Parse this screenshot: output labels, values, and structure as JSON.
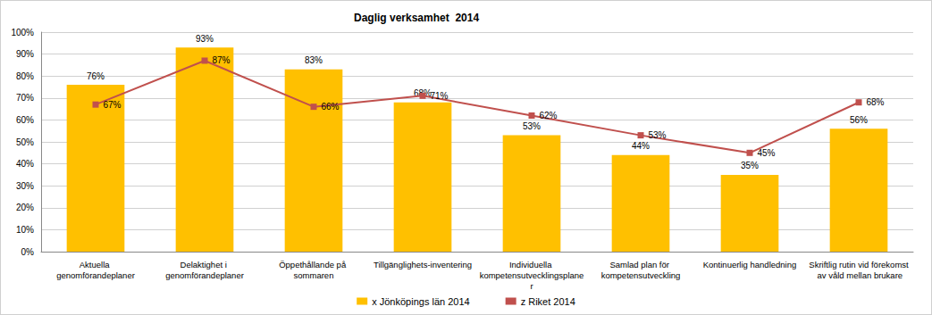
{
  "chart_data": {
    "type": "bar",
    "title": "Daglig verksamhet  2014",
    "categories": [
      "Aktuella genomförandeplaner",
      "Delaktighet i genomförandeplaner",
      "Öppethållande på sommaren",
      "Tillgänglighets-inventering",
      "Individuella kompetensutvecklingsplaner",
      "Samlad plan för kompetensutveckling",
      "Kontinuerlig handledning",
      "Skriftlig rutin vid förekomst av våld mellan brukare"
    ],
    "series": [
      {
        "name": "x Jönköpings län 2014",
        "type": "bar",
        "color": "#FFC000",
        "values": [
          76,
          93,
          83,
          68,
          53,
          44,
          35,
          56
        ],
        "value_labels": [
          "76%",
          "93%",
          "83%",
          "68%",
          "53%",
          "44%",
          "35%",
          "56%"
        ]
      },
      {
        "name": "z Riket 2014",
        "type": "line",
        "color": "#C0504D",
        "marker": "square",
        "values": [
          67,
          87,
          66,
          71,
          62,
          53,
          45,
          68
        ],
        "value_labels": [
          "67%",
          "87%",
          "66%",
          "71%",
          "62%",
          "53%",
          "45%",
          "68%"
        ]
      }
    ],
    "ylim": [
      0,
      100
    ],
    "yticks": [
      {
        "value": 0,
        "label": "0%"
      },
      {
        "value": 10,
        "label": "10%"
      },
      {
        "value": 20,
        "label": "20%"
      },
      {
        "value": 30,
        "label": "30%"
      },
      {
        "value": 40,
        "label": "40%"
      },
      {
        "value": 50,
        "label": "50%"
      },
      {
        "value": 60,
        "label": "60%"
      },
      {
        "value": 70,
        "label": "70%"
      },
      {
        "value": 80,
        "label": "80%"
      },
      {
        "value": 90,
        "label": "90%"
      },
      {
        "value": 100,
        "label": "100%"
      }
    ],
    "grid": true,
    "legend": "bottom",
    "data_labels": true
  }
}
